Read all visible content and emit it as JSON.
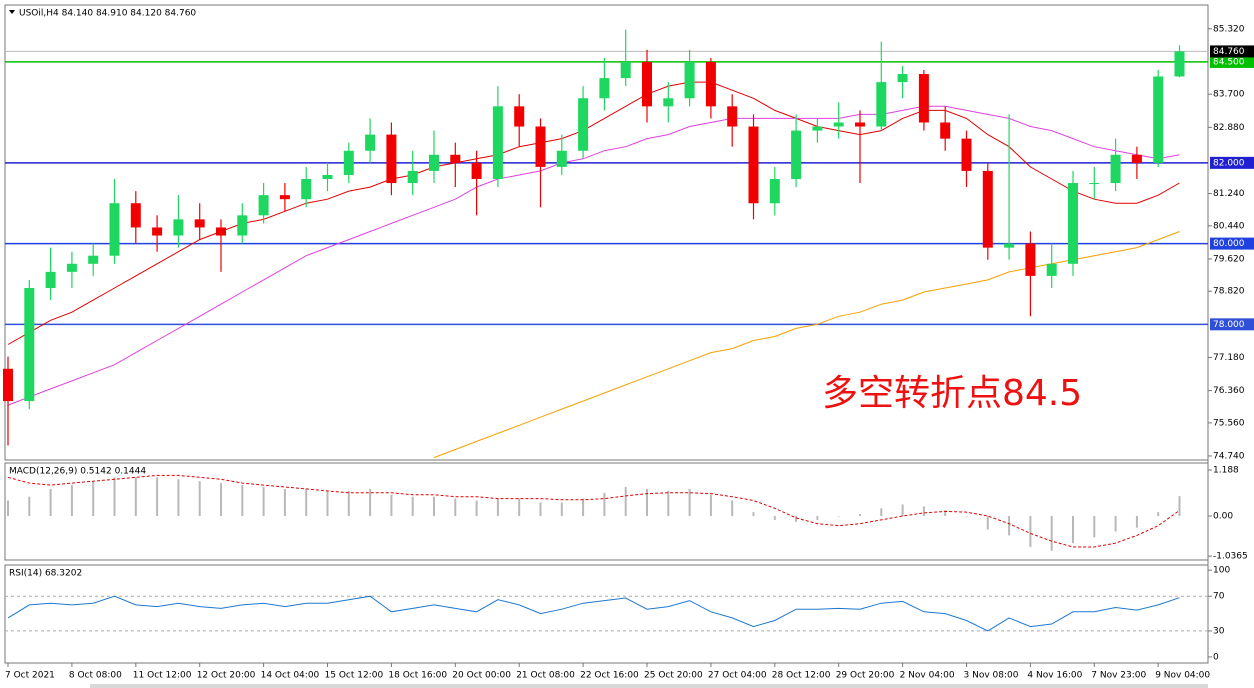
{
  "chart_data": [
    {
      "type": "candlestick",
      "title": "USOil,H4 84.140 84.910 84.120 84.760",
      "categories": [
        "7 Oct 2021",
        null,
        null,
        "8 Oct 08:00",
        null,
        null,
        "11 Oct 12:00",
        null,
        null,
        "12 Oct 20:00",
        null,
        null,
        "14 Oct 04:00",
        null,
        null,
        "15 Oct 12:00",
        null,
        null,
        "18 Oct 16:00",
        null,
        null,
        "20 Oct 00:00",
        null,
        null,
        "21 Oct 08:00",
        null,
        null,
        "22 Oct 16:00",
        null,
        null,
        "25 Oct 20:00",
        null,
        null,
        "27 Oct 04:00",
        null,
        null,
        "28 Oct 12:00",
        null,
        null,
        "29 Oct 20:00",
        null,
        null,
        "2 Nov 04:00",
        null,
        null,
        "3 Nov 08:00",
        null,
        null,
        "4 Nov 16:00",
        null,
        null,
        "7 Nov 23:00",
        null,
        null,
        "9 Nov 04:00",
        null
      ],
      "open": [
        76.9,
        76.1,
        78.9,
        79.3,
        79.5,
        79.7,
        81.0,
        80.4,
        80.2,
        80.6,
        80.4,
        80.2,
        80.7,
        81.2,
        81.1,
        81.6,
        81.7,
        82.3,
        82.7,
        81.5,
        81.8,
        82.2,
        82.0,
        81.6,
        83.4,
        82.9,
        81.9,
        82.3,
        83.6,
        84.1,
        84.5,
        83.4,
        83.6,
        84.5,
        83.4,
        82.9,
        81.0,
        81.6,
        82.8,
        82.9,
        83.0,
        82.9,
        84.0,
        84.2,
        83.0,
        82.6,
        81.8,
        79.9,
        80.0,
        79.2,
        79.5,
        81.5,
        81.5,
        82.2,
        82.0,
        84.14
      ],
      "high": [
        77.2,
        79.1,
        79.9,
        79.8,
        80.0,
        81.6,
        81.3,
        80.7,
        81.2,
        81.0,
        80.6,
        81.0,
        81.5,
        81.5,
        81.9,
        82.0,
        82.5,
        83.1,
        83.0,
        82.3,
        82.8,
        82.5,
        82.3,
        83.9,
        83.7,
        83.1,
        82.7,
        83.9,
        84.6,
        85.3,
        84.8,
        84.0,
        84.8,
        84.6,
        83.7,
        83.2,
        81.9,
        83.2,
        83.1,
        83.5,
        83.3,
        85.0,
        84.4,
        84.3,
        83.4,
        82.8,
        82.0,
        83.2,
        80.3,
        80.0,
        81.8,
        81.9,
        82.6,
        82.4,
        84.3,
        84.91
      ],
      "low": [
        75.0,
        75.9,
        78.6,
        78.9,
        79.2,
        79.5,
        80.0,
        79.8,
        79.9,
        80.1,
        79.3,
        80.0,
        80.5,
        80.8,
        80.9,
        81.3,
        81.5,
        82.0,
        81.2,
        81.2,
        81.5,
        81.4,
        80.7,
        81.4,
        82.4,
        80.9,
        81.7,
        82.1,
        83.3,
        83.9,
        83.0,
        83.0,
        83.4,
        83.1,
        82.4,
        80.6,
        80.7,
        81.4,
        82.5,
        82.6,
        81.5,
        82.8,
        83.6,
        82.8,
        82.3,
        81.4,
        79.6,
        79.6,
        78.2,
        78.9,
        79.2,
        81.1,
        81.3,
        81.6,
        81.9,
        84.12
      ],
      "close": [
        76.1,
        78.9,
        79.3,
        79.5,
        79.7,
        81.0,
        80.4,
        80.2,
        80.6,
        80.4,
        80.2,
        80.7,
        81.2,
        81.1,
        81.6,
        81.7,
        82.3,
        82.7,
        81.5,
        81.8,
        82.2,
        82.0,
        81.6,
        83.4,
        82.9,
        81.9,
        82.3,
        83.6,
        84.1,
        84.5,
        83.4,
        83.6,
        84.5,
        83.4,
        82.9,
        81.0,
        81.6,
        82.8,
        82.9,
        83.0,
        82.9,
        84.0,
        84.2,
        83.0,
        82.6,
        81.8,
        79.9,
        80.0,
        79.2,
        79.5,
        81.5,
        81.5,
        82.2,
        82.0,
        84.14,
        84.76
      ],
      "up_color": "#1ed760",
      "down_color": "#f00000",
      "moving_averages": [
        {
          "color": "#e00000",
          "values": [
            77.5,
            77.8,
            78.1,
            78.3,
            78.6,
            78.9,
            79.2,
            79.5,
            79.8,
            80.1,
            80.3,
            80.5,
            80.6,
            80.8,
            81.0,
            81.1,
            81.3,
            81.4,
            81.6,
            81.7,
            81.9,
            82.0,
            82.1,
            82.2,
            82.4,
            82.5,
            82.6,
            82.8,
            83.1,
            83.4,
            83.7,
            83.9,
            84.0,
            84.0,
            83.8,
            83.6,
            83.3,
            83.1,
            82.9,
            82.8,
            82.7,
            82.8,
            83.1,
            83.3,
            83.3,
            83.1,
            82.7,
            82.4,
            81.9,
            81.6,
            81.3,
            81.1,
            81.0,
            81.0,
            81.2,
            81.5
          ]
        },
        {
          "color": "#e040e0",
          "values": [
            76.0,
            76.2,
            76.4,
            76.6,
            76.8,
            77.0,
            77.3,
            77.6,
            77.9,
            78.2,
            78.5,
            78.8,
            79.1,
            79.4,
            79.7,
            79.9,
            80.1,
            80.3,
            80.5,
            80.7,
            80.9,
            81.1,
            81.4,
            81.6,
            81.7,
            81.8,
            82.0,
            82.1,
            82.3,
            82.4,
            82.6,
            82.7,
            82.9,
            83.0,
            83.1,
            83.1,
            83.1,
            83.1,
            83.1,
            83.1,
            83.2,
            83.2,
            83.3,
            83.4,
            83.4,
            83.3,
            83.2,
            83.1,
            82.9,
            82.8,
            82.6,
            82.4,
            82.3,
            82.2,
            82.1,
            82.2
          ]
        },
        {
          "color": "#f5a000",
          "values": [
            null,
            null,
            null,
            null,
            null,
            null,
            null,
            null,
            null,
            null,
            null,
            null,
            null,
            null,
            null,
            null,
            null,
            null,
            null,
            null,
            74.7,
            74.9,
            75.1,
            75.3,
            75.5,
            75.7,
            75.9,
            76.1,
            76.3,
            76.5,
            76.7,
            76.9,
            77.1,
            77.3,
            77.4,
            77.6,
            77.7,
            77.9,
            78.0,
            78.2,
            78.3,
            78.5,
            78.6,
            78.8,
            78.9,
            79.0,
            79.1,
            79.3,
            79.4,
            79.5,
            79.6,
            79.7,
            79.8,
            79.9,
            80.1,
            80.3
          ]
        }
      ],
      "levels": [
        {
          "value": 84.5,
          "label": "84.500",
          "color": "#00c000"
        },
        {
          "value": 82.0,
          "label": "82.000",
          "color": "#2020d0"
        },
        {
          "value": 80.0,
          "label": "80.000",
          "color": "#2040e0"
        },
        {
          "value": 78.0,
          "label": "78.000",
          "color": "#3050d8"
        }
      ],
      "last_price": {
        "value": 84.76,
        "label": "84.760"
      },
      "annotation": "多空转折点84.5",
      "ylim": [
        74.64,
        85.91
      ],
      "yticks": [
        {
          "value": 85.32,
          "label": "85.320"
        },
        {
          "value": 83.7,
          "label": "83.700"
        },
        {
          "value": 82.88,
          "label": "82.880"
        },
        {
          "value": 81.24,
          "label": "81.240"
        },
        {
          "value": 80.44,
          "label": "80.440"
        },
        {
          "value": 79.62,
          "label": "79.620"
        },
        {
          "value": 78.82,
          "label": "78.820"
        },
        {
          "value": 77.18,
          "label": "77.180"
        },
        {
          "value": 76.36,
          "label": "76.360"
        },
        {
          "value": 75.56,
          "label": "75.560"
        },
        {
          "value": 74.74,
          "label": "74.740"
        }
      ]
    },
    {
      "type": "macd",
      "title": "MACD(12,26,9) 0.5142 0.1444",
      "histogram": [
        0.4,
        0.5,
        0.7,
        0.8,
        0.9,
        1.0,
        1.0,
        1.0,
        0.95,
        0.9,
        0.85,
        0.8,
        0.75,
        0.7,
        0.7,
        0.65,
        0.65,
        0.7,
        0.55,
        0.5,
        0.5,
        0.45,
        0.4,
        0.45,
        0.45,
        0.35,
        0.35,
        0.45,
        0.6,
        0.75,
        0.7,
        0.65,
        0.7,
        0.55,
        0.4,
        0.1,
        -0.1,
        -0.15,
        -0.1,
        0.0,
        0.05,
        0.2,
        0.3,
        0.25,
        0.15,
        0.0,
        -0.35,
        -0.5,
        -0.8,
        -0.9,
        -0.7,
        -0.55,
        -0.4,
        -0.3,
        0.1,
        0.5142
      ],
      "signal": [
        1.0,
        0.85,
        0.8,
        0.85,
        0.9,
        0.95,
        1.0,
        1.05,
        1.05,
        1.0,
        0.95,
        0.85,
        0.8,
        0.75,
        0.7,
        0.65,
        0.6,
        0.6,
        0.6,
        0.55,
        0.55,
        0.5,
        0.5,
        0.45,
        0.45,
        0.45,
        0.42,
        0.42,
        0.45,
        0.52,
        0.58,
        0.6,
        0.6,
        0.58,
        0.5,
        0.4,
        0.2,
        -0.05,
        -0.2,
        -0.25,
        -0.2,
        -0.1,
        0.0,
        0.08,
        0.12,
        0.1,
        0.0,
        -0.2,
        -0.45,
        -0.65,
        -0.8,
        -0.8,
        -0.7,
        -0.5,
        -0.25,
        0.1444
      ],
      "hist_color": "#b8b8b8",
      "signal_color": "#e00000",
      "ylim": [
        -1.137,
        1.37
      ],
      "yticks": [
        1.188,
        {
          "value": 0,
          "label": "0.00"
        },
        -1.0365
      ]
    },
    {
      "type": "line",
      "title": "RSI(14) 68.3202",
      "values": [
        45,
        60,
        62,
        60,
        62,
        70,
        60,
        58,
        62,
        58,
        56,
        60,
        62,
        58,
        62,
        62,
        66,
        70,
        52,
        56,
        60,
        56,
        52,
        66,
        60,
        50,
        55,
        62,
        65,
        68,
        55,
        58,
        65,
        52,
        45,
        35,
        42,
        55,
        55,
        56,
        55,
        62,
        64,
        52,
        50,
        42,
        30,
        45,
        35,
        38,
        52,
        52,
        57,
        54,
        60,
        68.3202
      ],
      "color": "#1e78d0",
      "ylim": [
        -7,
        106
      ],
      "yticks": [
        100,
        70,
        30,
        0
      ],
      "levels": [
        70,
        30
      ]
    }
  ]
}
